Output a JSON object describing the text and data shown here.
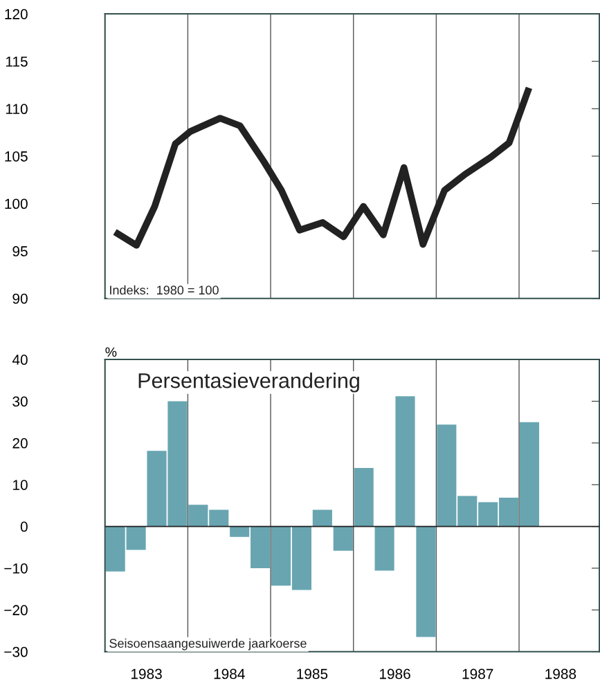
{
  "chart_data": [
    {
      "type": "line",
      "tick_labels": "y",
      "xlim": [
        1983,
        1988.97
      ],
      "ylim": [
        90,
        120
      ],
      "yticks": [
        90,
        95,
        100,
        105,
        110,
        115,
        120
      ],
      "grid": false,
      "legend": false,
      "marker": "none",
      "line_style": "solid",
      "series": [
        {
          "color": "#222222",
          "x": [
            1983.12,
            1983.38,
            1983.6,
            1983.85,
            1984.03,
            1984.39,
            1984.63,
            1984.92,
            1985.13,
            1985.35,
            1985.63,
            1985.88,
            1986.12,
            1986.36,
            1986.61,
            1986.84,
            1987.1,
            1987.35,
            1987.66,
            1987.88,
            1988.12
          ],
          "values": [
            97.0,
            95.6,
            99.7,
            106.3,
            107.6,
            109.0,
            108.2,
            104.4,
            101.4,
            97.2,
            98.0,
            96.5,
            99.7,
            96.7,
            103.8,
            95.7,
            101.4,
            103.1,
            104.9,
            106.4,
            112.2
          ]
        }
      ],
      "ref_lines": [
        {
          "axis": "x",
          "value": 1984,
          "color": "#555555"
        },
        {
          "axis": "x",
          "value": 1985,
          "color": "#555555"
        },
        {
          "axis": "x",
          "value": 1986,
          "color": "#555555"
        },
        {
          "axis": "x",
          "value": 1987,
          "color": "#555555"
        },
        {
          "axis": "x",
          "value": 1988,
          "color": "#555555"
        }
      ],
      "annotations": [
        "Indeks:  1980 = 100"
      ]
    },
    {
      "type": "bar",
      "ylabel": "%",
      "xlim": [
        1983,
        1988.97
      ],
      "xticks": [
        {
          "value": 1983.5,
          "label": "1983"
        },
        {
          "value": 1984.5,
          "label": "1984"
        },
        {
          "value": 1985.5,
          "label": "1985"
        },
        {
          "value": 1986.5,
          "label": "1986"
        },
        {
          "value": 1987.5,
          "label": "1987"
        },
        {
          "value": 1988.5,
          "label": "1988"
        }
      ],
      "ylim": [
        -30,
        40
      ],
      "yticks": [
        {
          "value": -30,
          "label": "−30"
        },
        {
          "value": -20,
          "label": "−20"
        },
        {
          "value": -10,
          "label": "−10"
        },
        0,
        10,
        20,
        30,
        40
      ],
      "grid": false,
      "legend": false,
      "x": [
        1983.125,
        1983.375,
        1983.625,
        1983.875,
        1984.125,
        1984.375,
        1984.625,
        1984.875,
        1985.125,
        1985.375,
        1985.625,
        1985.875,
        1986.125,
        1986.375,
        1986.625,
        1986.875,
        1987.125,
        1987.375,
        1987.625,
        1987.875,
        1988.125
      ],
      "series": [
        {
          "color": "#68a5b1",
          "values": [
            -10.8,
            -5.6,
            18.1,
            30,
            5.2,
            4,
            -2.5,
            -10,
            -14.2,
            -15.2,
            4,
            -5.8,
            14,
            -10.6,
            31.2,
            -26.5,
            24.4,
            7.3,
            5.8,
            6.9,
            25
          ]
        }
      ],
      "ref_lines": [
        {
          "axis": "y",
          "value": 0,
          "color": "#222222"
        },
        {
          "axis": "x",
          "value": 1984,
          "color": "#555555"
        },
        {
          "axis": "x",
          "value": 1985,
          "color": "#555555"
        },
        {
          "axis": "x",
          "value": 1986,
          "color": "#555555"
        },
        {
          "axis": "x",
          "value": 1987,
          "color": "#555555"
        },
        {
          "axis": "x",
          "value": 1988,
          "color": "#555555"
        }
      ],
      "annotations": [
        "Persentasieverandering",
        "Seisoensaangesuiwerde jaarkoerse"
      ]
    }
  ]
}
